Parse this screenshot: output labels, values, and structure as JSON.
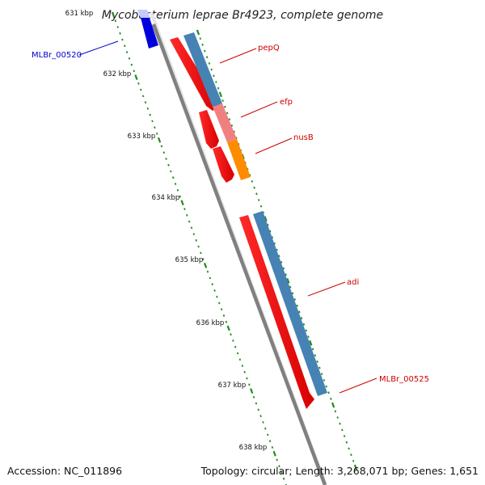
{
  "title": "Mycobacterium leprae Br4923, complete genome",
  "accession": "Accession: NC_011896",
  "topology": "Topology: circular; Length: 3,268,071 bp; Genes: 1,651",
  "scale_labels": [
    "631 kbp",
    "632 kbp",
    "633 kbp",
    "634 kbp",
    "635 kbp",
    "636 kbp",
    "637 kbp",
    "638 kbp"
  ],
  "genes": [
    {
      "name": "MLBr_00520",
      "color": "#0000cc"
    },
    {
      "name": "pepQ",
      "color": "#cc0000"
    },
    {
      "name": "efp",
      "color": "#cc0000"
    },
    {
      "name": "nusB",
      "color": "#cc0000"
    },
    {
      "name": "adi",
      "color": "#cc0000"
    },
    {
      "name": "MLBr_00525",
      "color": "#cc0000"
    }
  ],
  "colors": {
    "backbone": "#808080",
    "cds": "#ff0000",
    "blue_feature": "#4682b4",
    "salmon_feature": "#f08080",
    "orange_feature": "#ff8c00",
    "tick": "#228b22"
  }
}
